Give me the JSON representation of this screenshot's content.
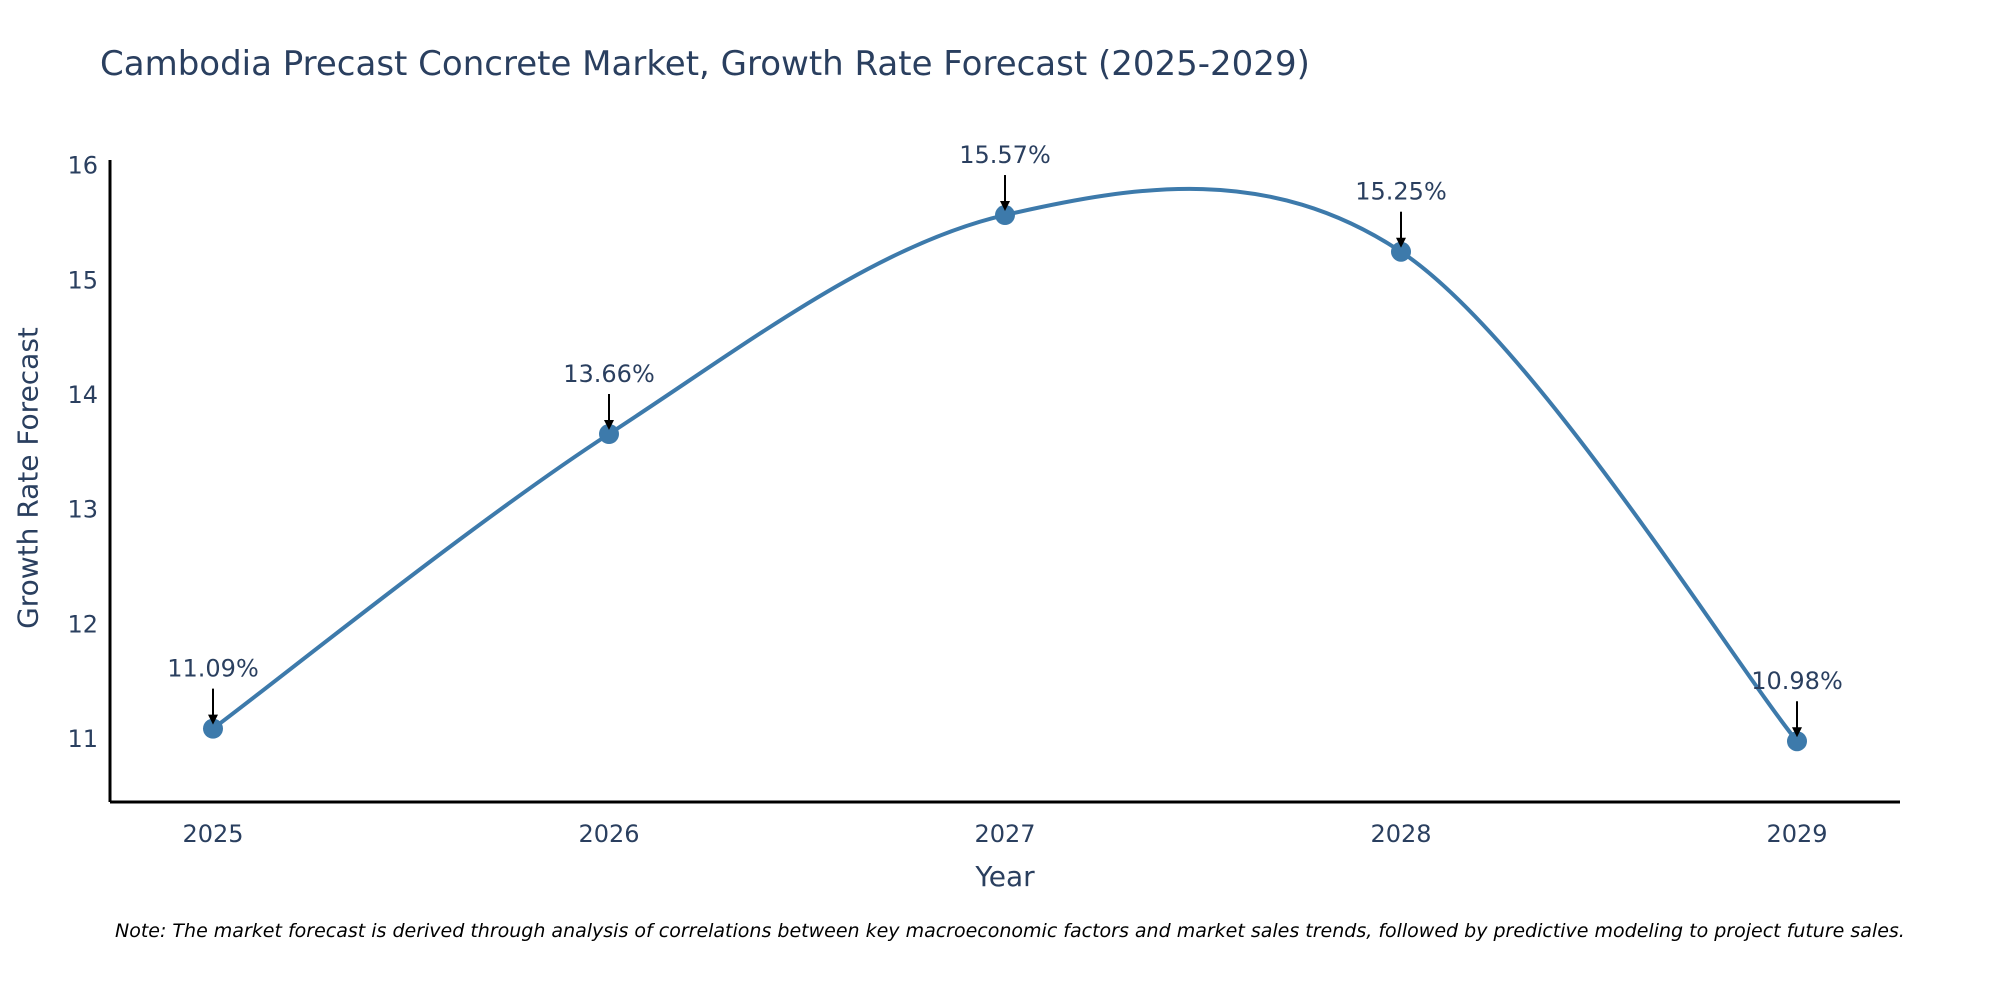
{
  "chart_data": {
    "type": "line",
    "title": "Cambodia Precast Concrete Market, Growth Rate Forecast (2025-2029)",
    "xlabel": "Year",
    "ylabel": "Growth Rate Forecast",
    "x": [
      "2025",
      "2026",
      "2027",
      "2028",
      "2029"
    ],
    "series": [
      {
        "name": "Growth Rate Forecast",
        "values": [
          11.09,
          13.66,
          15.57,
          15.25,
          10.98
        ],
        "labels": [
          "11.09%",
          "13.66%",
          "15.57%",
          "15.25%",
          "10.98%"
        ]
      }
    ],
    "y_ticks": [
      11,
      12,
      13,
      14,
      15,
      16
    ],
    "ylim": [
      10.45,
      16.05
    ],
    "grid": false,
    "legend": "none",
    "line_shape": "spline",
    "note": "Note: The market forecast is derived through analysis of correlations between key macroeconomic factors and market sales trends, followed by predictive modeling to project future sales."
  },
  "colors": {
    "line": "#3d7aab",
    "marker": "#3d7aab",
    "axis": "#000000",
    "text": "#2a3f5f",
    "arrow": "#000000"
  }
}
